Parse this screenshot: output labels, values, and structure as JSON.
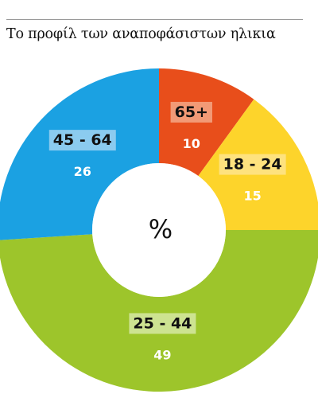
{
  "chart_data": {
    "type": "pie",
    "title": "Το προφίλ των αναποφάσιστων ηλικια",
    "center_label": "%",
    "categories": [
      "65+",
      "18 - 24",
      "25 - 44",
      "45 - 64"
    ],
    "values": [
      10,
      15,
      49,
      26
    ],
    "colors": [
      "#e84e1b",
      "#fdd42b",
      "#9dc52b",
      "#1ba1e2"
    ],
    "label_box_colors": [
      "#f29a76",
      "#fee27e",
      "#cde391",
      "#8bcbef"
    ]
  }
}
